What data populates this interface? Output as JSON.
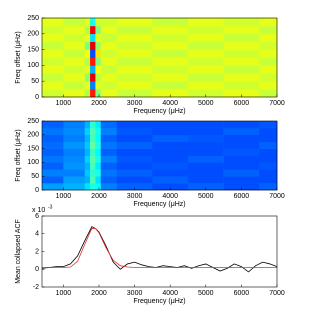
{
  "chart_data": [
    {
      "type": "heatmap",
      "x_label": "Frequency (μHz)",
      "y_label": "Freq offset (μHz)",
      "xlim": [
        400,
        7000
      ],
      "ylim": [
        0,
        250
      ],
      "xticks": [
        1000,
        2000,
        3000,
        4000,
        5000,
        6000,
        7000
      ],
      "yticks": [
        0,
        50,
        100,
        150,
        200,
        250
      ],
      "x_edges": [
        400,
        1000,
        1600,
        1750,
        1900,
        2050,
        2500,
        3500,
        4500,
        5500,
        6500,
        7000
      ],
      "y_edges": [
        0,
        25,
        50,
        75,
        100,
        125,
        150,
        175,
        200,
        225,
        250
      ],
      "z": [
        [
          0.58,
          0.6,
          0.55,
          0.85,
          0.5,
          0.6,
          0.57,
          0.6,
          0.58,
          0.6,
          0.57
        ],
        [
          0.6,
          0.57,
          0.6,
          0.25,
          0.6,
          0.58,
          0.6,
          0.57,
          0.6,
          0.58,
          0.6
        ],
        [
          0.57,
          0.6,
          0.52,
          0.9,
          0.55,
          0.6,
          0.58,
          0.6,
          0.57,
          0.6,
          0.58
        ],
        [
          0.6,
          0.58,
          0.6,
          0.3,
          0.62,
          0.57,
          0.6,
          0.58,
          0.6,
          0.57,
          0.6
        ],
        [
          0.58,
          0.6,
          0.55,
          0.85,
          0.5,
          0.6,
          0.57,
          0.6,
          0.58,
          0.6,
          0.57
        ],
        [
          0.6,
          0.57,
          0.62,
          0.2,
          0.65,
          0.58,
          0.6,
          0.57,
          0.6,
          0.58,
          0.6
        ],
        [
          0.57,
          0.6,
          0.5,
          0.9,
          0.52,
          0.6,
          0.58,
          0.6,
          0.57,
          0.6,
          0.58
        ],
        [
          0.6,
          0.58,
          0.6,
          0.35,
          0.6,
          0.57,
          0.6,
          0.58,
          0.6,
          0.57,
          0.6
        ],
        [
          0.58,
          0.6,
          0.55,
          0.88,
          0.5,
          0.6,
          0.57,
          0.6,
          0.58,
          0.6,
          0.57
        ],
        [
          0.6,
          0.57,
          0.6,
          0.4,
          0.58,
          0.58,
          0.6,
          0.57,
          0.6,
          0.58,
          0.6
        ]
      ]
    },
    {
      "type": "heatmap",
      "x_label": "Frequency (μHz)",
      "y_label": "Freq offset (μHz)",
      "xlim": [
        400,
        7000
      ],
      "ylim": [
        0,
        250
      ],
      "xticks": [
        1000,
        2000,
        3000,
        4000,
        5000,
        6000,
        7000
      ],
      "yticks": [
        0,
        50,
        100,
        150,
        200,
        250
      ],
      "x_edges": [
        400,
        1000,
        1600,
        1750,
        1900,
        2050,
        2500,
        3500,
        4500,
        5500,
        6500,
        7000
      ],
      "y_edges": [
        0,
        25,
        50,
        75,
        100,
        125,
        150,
        175,
        200,
        225,
        250
      ],
      "z": [
        [
          0.28,
          0.3,
          0.35,
          0.4,
          0.38,
          0.25,
          0.22,
          0.2,
          0.22,
          0.2,
          0.22
        ],
        [
          0.22,
          0.28,
          0.3,
          0.45,
          0.35,
          0.22,
          0.2,
          0.22,
          0.2,
          0.2,
          0.2
        ],
        [
          0.25,
          0.25,
          0.32,
          0.42,
          0.4,
          0.24,
          0.22,
          0.2,
          0.2,
          0.22,
          0.2
        ],
        [
          0.22,
          0.27,
          0.3,
          0.44,
          0.36,
          0.22,
          0.2,
          0.21,
          0.2,
          0.2,
          0.21
        ],
        [
          0.24,
          0.26,
          0.33,
          0.46,
          0.4,
          0.25,
          0.21,
          0.2,
          0.22,
          0.2,
          0.2
        ],
        [
          0.22,
          0.25,
          0.3,
          0.43,
          0.37,
          0.22,
          0.2,
          0.2,
          0.2,
          0.21,
          0.2
        ],
        [
          0.23,
          0.27,
          0.32,
          0.47,
          0.4,
          0.24,
          0.22,
          0.2,
          0.2,
          0.2,
          0.22
        ],
        [
          0.22,
          0.25,
          0.3,
          0.44,
          0.38,
          0.22,
          0.2,
          0.22,
          0.21,
          0.2,
          0.2
        ],
        [
          0.24,
          0.26,
          0.33,
          0.45,
          0.39,
          0.25,
          0.21,
          0.2,
          0.2,
          0.22,
          0.2
        ],
        [
          0.22,
          0.25,
          0.3,
          0.42,
          0.36,
          0.23,
          0.2,
          0.2,
          0.2,
          0.2,
          0.21
        ]
      ]
    },
    {
      "type": "line",
      "x_label": "Frequency (μHz)",
      "y_label": "Mean collapsed ACF",
      "y_scale_label": "x 10",
      "y_scale_exponent": "-3",
      "xlim": [
        400,
        7000
      ],
      "ylim": [
        -2,
        6
      ],
      "xticks": [
        1000,
        2000,
        3000,
        4000,
        5000,
        6000,
        7000
      ],
      "yticks": [
        -2,
        0,
        2,
        4,
        6
      ],
      "x": [
        400,
        600,
        800,
        1000,
        1200,
        1400,
        1600,
        1800,
        1900,
        2000,
        2200,
        2400,
        2600,
        2800,
        3000,
        3200,
        3400,
        3600,
        3800,
        4000,
        4200,
        4400,
        4600,
        4800,
        5000,
        5200,
        5400,
        5600,
        5800,
        6000,
        6200,
        6400,
        6600,
        6800,
        7000
      ],
      "series": [
        {
          "color": "#000000",
          "values": [
            0.1,
            0.2,
            0.3,
            0.3,
            0.6,
            1.5,
            3.2,
            4.8,
            4.6,
            4.2,
            2.6,
            0.8,
            0.0,
            0.6,
            0.8,
            0.5,
            0.3,
            0.2,
            0.4,
            0.3,
            0.2,
            0.4,
            0.1,
            0.4,
            0.6,
            0.2,
            -0.2,
            0.1,
            0.6,
            0.3,
            -0.3,
            0.4,
            0.8,
            0.6,
            0.3
          ]
        },
        {
          "color": "#e03030",
          "values": [
            0.2,
            0.2,
            0.2,
            0.2,
            0.25,
            0.9,
            2.8,
            4.6,
            4.6,
            4.1,
            2.4,
            1.0,
            0.4,
            0.25,
            0.2,
            0.2,
            0.2,
            0.2,
            0.2,
            0.2,
            0.2,
            0.2,
            0.2,
            0.2,
            0.2,
            0.2,
            0.2,
            0.2,
            0.2,
            0.2,
            0.2,
            0.2,
            0.2,
            0.2,
            0.2
          ]
        }
      ]
    }
  ]
}
